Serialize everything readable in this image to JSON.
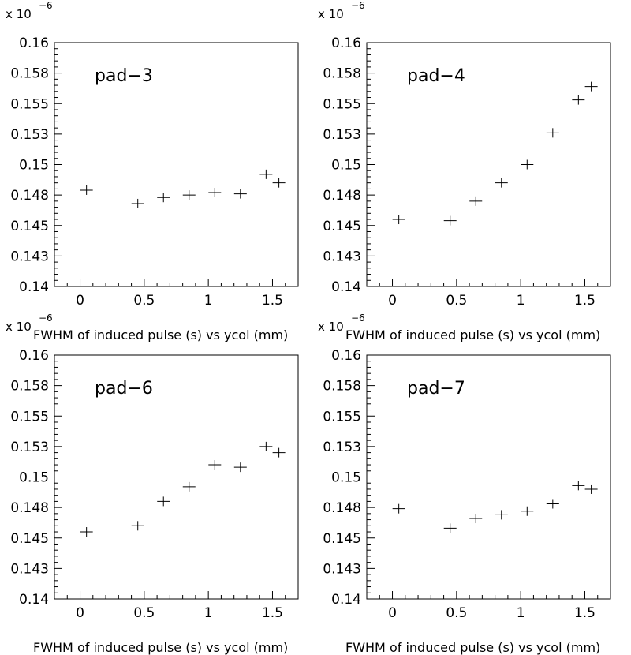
{
  "chart_data": [
    {
      "type": "scatter",
      "title": "pad−3",
      "xlabel": "FWHM of induced pulse (s) vs ycol (mm)",
      "ylabel": "",
      "multiplier": {
        "base": "x 10",
        "exponent": "−6"
      },
      "xlim": [
        -0.2,
        1.7
      ],
      "ylim": [
        0.14,
        0.16
      ],
      "xticks": [
        "0",
        "0.5",
        "1",
        "1.5"
      ],
      "yticks": [
        "0.14",
        "0.143",
        "0.145",
        "0.148",
        "0.15",
        "0.153",
        "0.155",
        "0.158",
        "0.16"
      ],
      "points": [
        [
          0.05,
          0.1479
        ],
        [
          0.45,
          0.1468
        ],
        [
          0.65,
          0.1473
        ],
        [
          0.85,
          0.1475
        ],
        [
          1.05,
          0.1477
        ],
        [
          1.25,
          0.1476
        ],
        [
          1.45,
          0.1492
        ],
        [
          1.55,
          0.1485
        ]
      ]
    },
    {
      "type": "scatter",
      "title": "pad−4",
      "xlabel": "FWHM of induced pulse (s) vs ycol (mm)",
      "ylabel": "",
      "multiplier": {
        "base": "x 10",
        "exponent": "−6"
      },
      "xlim": [
        -0.2,
        1.7
      ],
      "ylim": [
        0.14,
        0.16
      ],
      "xticks": [
        "0",
        "0.5",
        "1",
        "1.5"
      ],
      "yticks": [
        "0.14",
        "0.143",
        "0.145",
        "0.148",
        "0.15",
        "0.153",
        "0.155",
        "0.158",
        "0.16"
      ],
      "points": [
        [
          0.05,
          0.1455
        ],
        [
          0.45,
          0.1454
        ],
        [
          0.65,
          0.147
        ],
        [
          0.85,
          0.1485
        ],
        [
          1.05,
          0.15
        ],
        [
          1.25,
          0.1526
        ],
        [
          1.45,
          0.1553
        ],
        [
          1.55,
          0.1564
        ]
      ]
    },
    {
      "type": "scatter",
      "title": "pad−6",
      "xlabel": "FWHM of induced pulse (s) vs ycol (mm)",
      "ylabel": "",
      "multiplier": {
        "base": "x 10",
        "exponent": "−6"
      },
      "xlim": [
        -0.2,
        1.7
      ],
      "ylim": [
        0.14,
        0.16
      ],
      "xticks": [
        "0",
        "0.5",
        "1",
        "1.5"
      ],
      "yticks": [
        "0.14",
        "0.143",
        "0.145",
        "0.148",
        "0.15",
        "0.153",
        "0.155",
        "0.158",
        "0.16"
      ],
      "points": [
        [
          0.05,
          0.1455
        ],
        [
          0.45,
          0.146
        ],
        [
          0.65,
          0.148
        ],
        [
          0.85,
          0.1492
        ],
        [
          1.05,
          0.151
        ],
        [
          1.25,
          0.1508
        ],
        [
          1.45,
          0.1525
        ],
        [
          1.55,
          0.152
        ]
      ]
    },
    {
      "type": "scatter",
      "title": "pad−7",
      "xlabel": "FWHM of induced pulse (s) vs ycol (mm)",
      "ylabel": "",
      "multiplier": {
        "base": "x 10",
        "exponent": "−6"
      },
      "xlim": [
        -0.2,
        1.7
      ],
      "ylim": [
        0.14,
        0.16
      ],
      "xticks": [
        "0",
        "0.5",
        "1",
        "1.5"
      ],
      "yticks": [
        "0.14",
        "0.143",
        "0.145",
        "0.148",
        "0.15",
        "0.153",
        "0.155",
        "0.158",
        "0.16"
      ],
      "points": [
        [
          0.05,
          0.1474
        ],
        [
          0.45,
          0.1458
        ],
        [
          0.65,
          0.1466
        ],
        [
          0.85,
          0.1469
        ],
        [
          1.05,
          0.1472
        ],
        [
          1.25,
          0.1478
        ],
        [
          1.45,
          0.1493
        ],
        [
          1.55,
          0.149
        ]
      ]
    }
  ]
}
